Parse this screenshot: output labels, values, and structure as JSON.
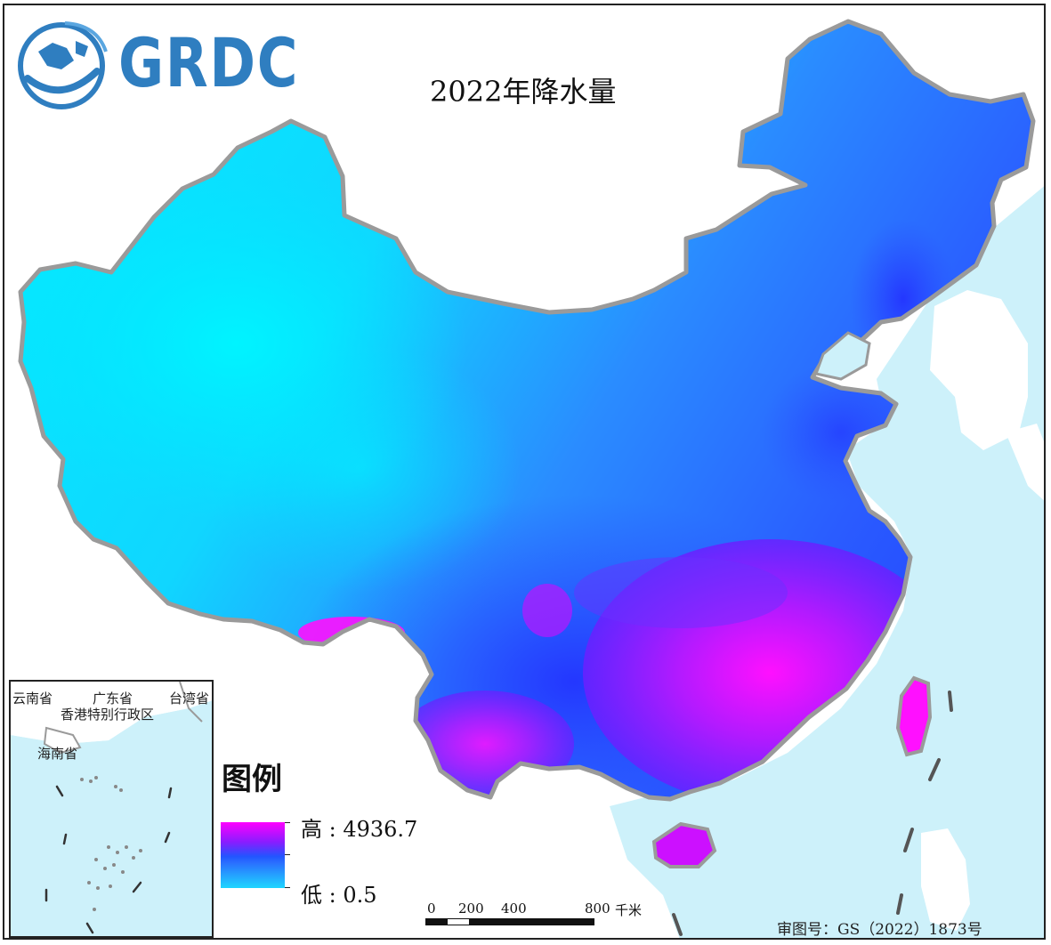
{
  "logo": {
    "text": "GRDC",
    "mark": "globe-swoosh-logo",
    "color": "#2f7ec0"
  },
  "title": "2022年降水量",
  "legend": {
    "title": "图例",
    "high_label": "高 : 4936.7",
    "low_label": "低 : 0.5",
    "high_value": 4936.7,
    "low_value": 0.5,
    "colors": [
      "#ff00ff",
      "#8a1cff",
      "#2255ff",
      "#1fd6ff"
    ]
  },
  "inset": {
    "labels": [
      "云南省",
      "广东省",
      "台湾省",
      "香港特别行政区",
      "海南省"
    ]
  },
  "scalebar": {
    "ticks": [
      "0",
      "200",
      "400",
      "800"
    ],
    "unit": "千米"
  },
  "approval_number": "审图号：GS（2022）1873号",
  "colors": {
    "sea": "#cdf1fa",
    "border": "#9a9a9a",
    "arid": "#00f0ff",
    "humid": "#2446ff",
    "very_humid": "#ff00ff"
  }
}
